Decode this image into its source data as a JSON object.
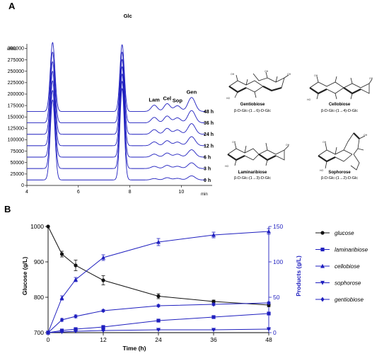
{
  "chart_data": [
    {
      "panel": "A",
      "type": "line",
      "title": "",
      "y_unit_label": "nRIU",
      "x_unit_label": "min",
      "x_ticks": [
        4,
        6,
        8,
        10
      ],
      "xlim": [
        4,
        11.2
      ],
      "y_ticks": [
        0,
        25000,
        50000,
        75000,
        100000,
        125000,
        150000,
        175000,
        200000,
        225000,
        250000,
        275000,
        300000
      ],
      "ylim": [
        0,
        310000
      ],
      "offset_step": 25000,
      "trace_labels": [
        "0 h",
        "3 h",
        "6 h",
        "12 h",
        "24 h",
        "36 h",
        "48 h"
      ],
      "peaks": [
        {
          "name": "",
          "rt": 5.0
        },
        {
          "name": "Glc",
          "rt": 7.7
        },
        {
          "name": "Lam",
          "rt": 8.95
        },
        {
          "name": "Cel",
          "rt": 9.45
        },
        {
          "name": "Sop",
          "rt": 9.85
        },
        {
          "name": "Gen",
          "rt": 10.4
        }
      ],
      "color": "#1f1fbf"
    },
    {
      "panel": "B",
      "type": "line",
      "title": "",
      "xlabel": "Time (h)",
      "ylabel": "Glucose (g/L)",
      "y2label": "Products (g/L)",
      "x": [
        0,
        3,
        6,
        12,
        24,
        36,
        48
      ],
      "x_ticks": [
        0,
        12,
        24,
        36,
        48
      ],
      "xlim": [
        0,
        48
      ],
      "ylim": [
        700,
        1000
      ],
      "y_ticks": [
        700,
        800,
        900,
        1000
      ],
      "y2lim": [
        0,
        150
      ],
      "y2_ticks": [
        0,
        50,
        100,
        150
      ],
      "legend_position": "right",
      "series": [
        {
          "name": "glucose",
          "axis": "left",
          "color": "#111111",
          "marker": "circle",
          "values": [
            1000,
            922,
            890,
            848,
            803,
            788,
            778
          ],
          "err": [
            0,
            8,
            15,
            13,
            7,
            4,
            5
          ]
        },
        {
          "name": "laminaribiose",
          "axis": "right",
          "color": "#1f1fbf",
          "marker": "square",
          "values": [
            0,
            3,
            5,
            8,
            17,
            22,
            27
          ],
          "err": [
            0,
            1,
            1,
            1,
            1,
            1,
            1
          ]
        },
        {
          "name": "cellobiose",
          "axis": "right",
          "color": "#1f1fbf",
          "marker": "triangle-up",
          "values": [
            0,
            49,
            75,
            106,
            128,
            138,
            143
          ],
          "err": [
            0,
            3,
            3,
            4,
            5,
            4,
            4
          ]
        },
        {
          "name": "sophorose",
          "axis": "right",
          "color": "#1f1fbf",
          "marker": "triangle-down",
          "values": [
            0,
            1,
            2,
            3,
            4,
            4,
            5
          ],
          "err": [
            0,
            0.5,
            0.5,
            0.5,
            0.5,
            0.5,
            0.5
          ]
        },
        {
          "name": "gentiobiose",
          "axis": "right",
          "color": "#1f1fbf",
          "marker": "diamond",
          "values": [
            0,
            18,
            23,
            31,
            38,
            40,
            42
          ],
          "err": [
            0,
            2,
            2,
            1.5,
            1.5,
            1.5,
            1.5
          ]
        }
      ]
    }
  ],
  "structures": [
    {
      "name": "Gentiobiose",
      "linkage": "β-D-Glc-(1→6)-D-Glc"
    },
    {
      "name": "Cellobiose",
      "linkage": "β-D-Glc-(1→4)-D-Glc"
    },
    {
      "name": "Laminaribiose",
      "linkage": "β-D-Glc-(1→3)-D-Glc"
    },
    {
      "name": "Sophorose",
      "linkage": "β-D-Glc-(1→2)-D-Glc"
    }
  ]
}
